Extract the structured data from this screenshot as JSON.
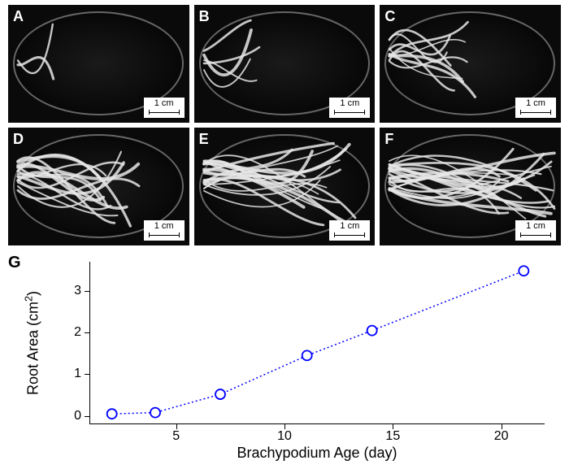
{
  "panels": {
    "labels": [
      "A",
      "B",
      "C",
      "D",
      "E",
      "F"
    ],
    "scalebar_text": "1 cm",
    "root_density": [
      0.02,
      0.15,
      0.35,
      0.6,
      0.8,
      1.0
    ]
  },
  "chart": {
    "type": "line",
    "letter": "G",
    "xlabel": "Brachypodium Age (day)",
    "ylabel": "Root Area (cm²)",
    "x": [
      2,
      4,
      7,
      11,
      14,
      21
    ],
    "y": [
      0.05,
      0.08,
      0.52,
      1.45,
      2.05,
      3.48
    ],
    "xlim": [
      1,
      22
    ],
    "ylim": [
      -0.2,
      3.7
    ],
    "xticks": [
      5,
      10,
      15,
      20
    ],
    "yticks": [
      0,
      1,
      2,
      3
    ],
    "line_color": "#0000ff",
    "line_dash": "2,3",
    "line_width": 1.5,
    "marker_edge_color": "#0000ff",
    "marker_face_color": "#ffffff",
    "marker_radius": 6,
    "marker_edge_width": 1.8,
    "axis_color": "#000000",
    "background_color": "#ffffff",
    "label_fontsize": 18,
    "tick_fontsize": 16
  }
}
